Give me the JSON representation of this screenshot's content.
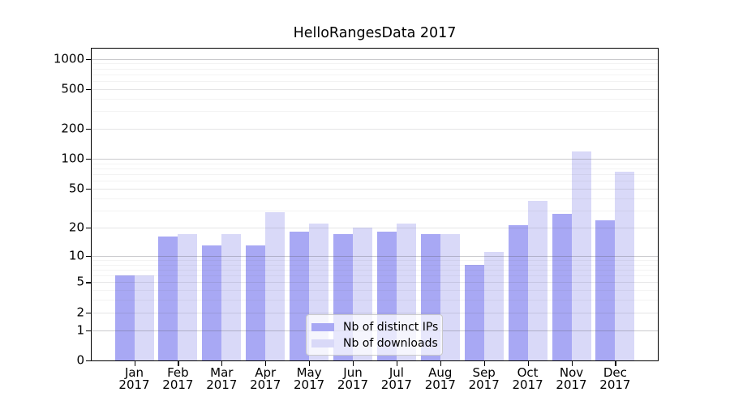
{
  "title": "HelloRangesData 2017",
  "colors": {
    "distinct_ips_bar": "#a8a8f4",
    "downloads_bar": "#d9d9f8",
    "axis": "#000000",
    "grid_major": "rgba(80,80,90,0.30)",
    "grid_medium": "rgba(80,80,90,0.15)",
    "grid_minor": "rgba(80,80,90,0.07)",
    "legend_border": "#c9c9c9",
    "legend_background": "rgba(255,255,255,0.72)"
  },
  "legend": {
    "items": [
      {
        "label": "Nb of distinct IPs",
        "series": "distinct_ips"
      },
      {
        "label": "Nb of downloads",
        "series": "downloads"
      }
    ]
  },
  "chart_data": {
    "type": "bar",
    "title": "HelloRangesData 2017",
    "months": [
      "Jan",
      "Feb",
      "Mar",
      "Apr",
      "May",
      "Jun",
      "Jul",
      "Aug",
      "Sep",
      "Oct",
      "Nov",
      "Dec"
    ],
    "year_label": "2017",
    "categories": [
      "Jan 2017",
      "Feb 2017",
      "Mar 2017",
      "Apr 2017",
      "May 2017",
      "Jun 2017",
      "Jul 2017",
      "Aug 2017",
      "Sep 2017",
      "Oct 2017",
      "Nov 2017",
      "Dec 2017"
    ],
    "series": [
      {
        "name": "Nb of distinct IPs",
        "key": "distinct_ips",
        "values": [
          6,
          16,
          13,
          13,
          18,
          17,
          18,
          17,
          8,
          21,
          28,
          24
        ]
      },
      {
        "name": "Nb of downloads",
        "key": "downloads",
        "values": [
          6,
          17,
          17,
          29,
          22,
          20,
          22,
          17,
          11,
          38,
          120,
          75
        ]
      }
    ],
    "xlabel": "",
    "ylabel": "",
    "yaxis": {
      "scale": "log10(value+1)",
      "ticks": [
        0,
        1,
        2,
        5,
        10,
        20,
        50,
        100,
        200,
        500,
        1000
      ],
      "range": [
        0,
        1265
      ]
    },
    "grid": "on",
    "legend_position": "inside-bottom-center"
  }
}
